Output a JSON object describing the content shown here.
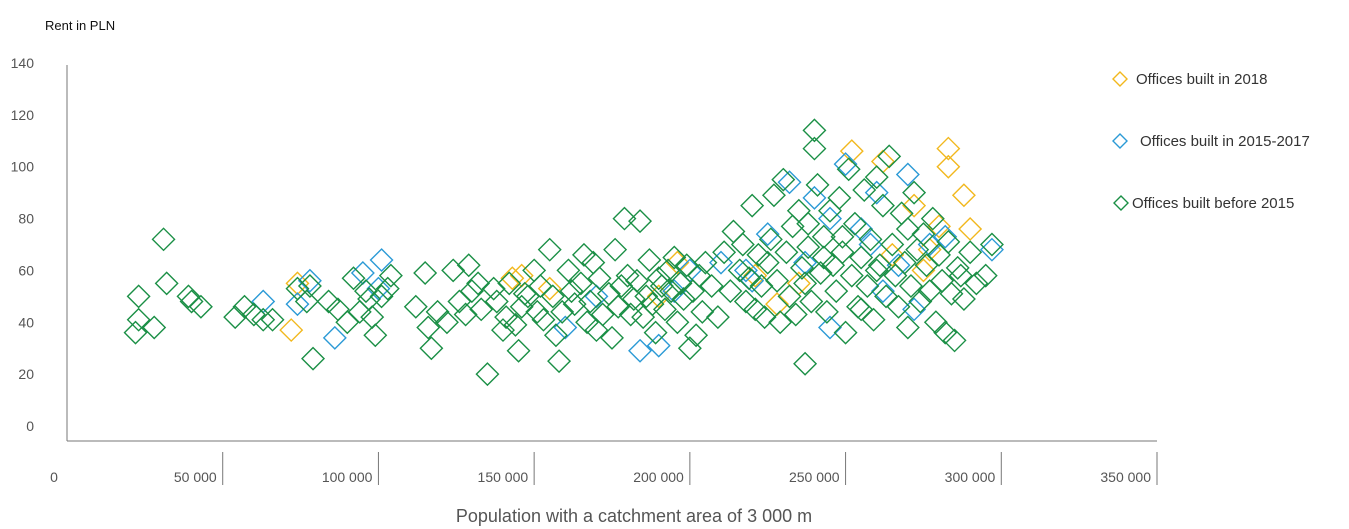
{
  "chart_data": {
    "type": "scatter",
    "ylabel": "Rent in PLN",
    "xlabel": "Population with a catchment area of 3 000 m",
    "xlim": [
      0,
      350000
    ],
    "ylim": [
      0,
      140
    ],
    "x_ticks": [
      0,
      50000,
      100000,
      150000,
      200000,
      250000,
      300000,
      350000
    ],
    "x_tick_labels": [
      "0",
      "50 000",
      "100 000",
      "150 000",
      "200 000",
      "250 000",
      "300 000",
      "350 000"
    ],
    "y_ticks": [
      0,
      20,
      40,
      60,
      80,
      100,
      120,
      140
    ],
    "y_tick_labels": [
      "0",
      "20",
      "40",
      "60",
      "80",
      "100",
      "120",
      "140"
    ],
    "legend_position": "right",
    "series": [
      {
        "name": "Offices built in 2018",
        "color": "#f2b81d",
        "points": [
          [
            72000,
            37
          ],
          [
            74000,
            55
          ],
          [
            143000,
            57
          ],
          [
            146000,
            58
          ],
          [
            155000,
            53
          ],
          [
            190000,
            50
          ],
          [
            196000,
            63
          ],
          [
            221000,
            58
          ],
          [
            228000,
            47
          ],
          [
            235000,
            55
          ],
          [
            252000,
            106
          ],
          [
            262000,
            102
          ],
          [
            265000,
            66
          ],
          [
            272000,
            85
          ],
          [
            275000,
            60
          ],
          [
            277000,
            68
          ],
          [
            280000,
            77
          ],
          [
            283000,
            107
          ],
          [
            283000,
            100
          ],
          [
            288000,
            89
          ],
          [
            290000,
            76
          ]
        ]
      },
      {
        "name": "Offices built in 2015-2017",
        "color": "#2b9ad6",
        "points": [
          [
            63000,
            48
          ],
          [
            74000,
            47
          ],
          [
            78000,
            56
          ],
          [
            86000,
            34
          ],
          [
            95000,
            59
          ],
          [
            100000,
            53
          ],
          [
            101000,
            64
          ],
          [
            160000,
            38
          ],
          [
            170000,
            50
          ],
          [
            184000,
            29
          ],
          [
            190000,
            31
          ],
          [
            195000,
            52
          ],
          [
            200000,
            60
          ],
          [
            210000,
            63
          ],
          [
            218000,
            60
          ],
          [
            220000,
            56
          ],
          [
            225000,
            74
          ],
          [
            232000,
            94
          ],
          [
            237000,
            63
          ],
          [
            240000,
            88
          ],
          [
            245000,
            80
          ],
          [
            245000,
            38
          ],
          [
            250000,
            101
          ],
          [
            255000,
            76
          ],
          [
            258000,
            70
          ],
          [
            260000,
            90
          ],
          [
            262000,
            52
          ],
          [
            267000,
            62
          ],
          [
            270000,
            97
          ],
          [
            272000,
            45
          ],
          [
            277000,
            70
          ],
          [
            282000,
            73
          ],
          [
            297000,
            68
          ]
        ]
      },
      {
        "name": "Offices built before 2015",
        "color": "#1a8f45",
        "points": [
          [
            22000,
            36
          ],
          [
            23000,
            41
          ],
          [
            23000,
            50
          ],
          [
            28000,
            38
          ],
          [
            31000,
            72
          ],
          [
            32000,
            55
          ],
          [
            39000,
            50
          ],
          [
            40000,
            48
          ],
          [
            43000,
            46
          ],
          [
            54000,
            42
          ],
          [
            57000,
            46
          ],
          [
            60000,
            43
          ],
          [
            63000,
            41
          ],
          [
            66000,
            41
          ],
          [
            74000,
            53
          ],
          [
            77000,
            48
          ],
          [
            78000,
            54
          ],
          [
            79000,
            26
          ],
          [
            84000,
            48
          ],
          [
            87000,
            45
          ],
          [
            90000,
            40
          ],
          [
            92000,
            57
          ],
          [
            94000,
            44
          ],
          [
            96000,
            52
          ],
          [
            97000,
            49
          ],
          [
            98000,
            42
          ],
          [
            99000,
            35
          ],
          [
            101000,
            50
          ],
          [
            103000,
            53
          ],
          [
            104000,
            58
          ],
          [
            112000,
            46
          ],
          [
            115000,
            59
          ],
          [
            116000,
            38
          ],
          [
            117000,
            30
          ],
          [
            119000,
            44
          ],
          [
            122000,
            40
          ],
          [
            124000,
            60
          ],
          [
            126000,
            48
          ],
          [
            128000,
            43
          ],
          [
            129000,
            62
          ],
          [
            130000,
            52
          ],
          [
            132000,
            55
          ],
          [
            133000,
            45
          ],
          [
            135000,
            20
          ],
          [
            137000,
            53
          ],
          [
            138000,
            48
          ],
          [
            140000,
            37
          ],
          [
            141000,
            42
          ],
          [
            142000,
            55
          ],
          [
            144000,
            39
          ],
          [
            145000,
            29
          ],
          [
            146000,
            46
          ],
          [
            147000,
            51
          ],
          [
            148000,
            50
          ],
          [
            150000,
            60
          ],
          [
            151000,
            44
          ],
          [
            152000,
            54
          ],
          [
            153000,
            41
          ],
          [
            155000,
            68
          ],
          [
            156000,
            50
          ],
          [
            157000,
            35
          ],
          [
            158000,
            25
          ],
          [
            159000,
            44
          ],
          [
            161000,
            60
          ],
          [
            162000,
            52
          ],
          [
            163000,
            47
          ],
          [
            165000,
            55
          ],
          [
            166000,
            66
          ],
          [
            167000,
            40
          ],
          [
            168000,
            48
          ],
          [
            169000,
            63
          ],
          [
            170000,
            37
          ],
          [
            171000,
            57
          ],
          [
            172000,
            43
          ],
          [
            174000,
            51
          ],
          [
            175000,
            34
          ],
          [
            176000,
            68
          ],
          [
            177000,
            46
          ],
          [
            178000,
            54
          ],
          [
            179000,
            80
          ],
          [
            180000,
            58
          ],
          [
            181000,
            43
          ],
          [
            182000,
            49
          ],
          [
            183000,
            56
          ],
          [
            184000,
            79
          ],
          [
            185000,
            42
          ],
          [
            186000,
            50
          ],
          [
            187000,
            64
          ],
          [
            188000,
            47
          ],
          [
            189000,
            36
          ],
          [
            190000,
            57
          ],
          [
            191000,
            54
          ],
          [
            192000,
            45
          ],
          [
            193000,
            60
          ],
          [
            194000,
            52
          ],
          [
            195000,
            65
          ],
          [
            196000,
            40
          ],
          [
            197000,
            55
          ],
          [
            198000,
            49
          ],
          [
            199000,
            62
          ],
          [
            200000,
            30
          ],
          [
            201000,
            52
          ],
          [
            202000,
            35
          ],
          [
            203000,
            58
          ],
          [
            204000,
            44
          ],
          [
            205000,
            63
          ],
          [
            207000,
            54
          ],
          [
            209000,
            42
          ],
          [
            211000,
            67
          ],
          [
            213000,
            52
          ],
          [
            214000,
            75
          ],
          [
            216000,
            60
          ],
          [
            217000,
            70
          ],
          [
            218000,
            48
          ],
          [
            219000,
            57
          ],
          [
            220000,
            85
          ],
          [
            221000,
            45
          ],
          [
            222000,
            66
          ],
          [
            223000,
            54
          ],
          [
            224000,
            42
          ],
          [
            225000,
            63
          ],
          [
            226000,
            72
          ],
          [
            227000,
            89
          ],
          [
            228000,
            56
          ],
          [
            229000,
            40
          ],
          [
            230000,
            95
          ],
          [
            231000,
            67
          ],
          [
            232000,
            50
          ],
          [
            233000,
            77
          ],
          [
            234000,
            43
          ],
          [
            235000,
            83
          ],
          [
            236000,
            61
          ],
          [
            237000,
            24
          ],
          [
            237000,
            55
          ],
          [
            238000,
            69
          ],
          [
            239000,
            48
          ],
          [
            240000,
            107
          ],
          [
            240000,
            114
          ],
          [
            241000,
            93
          ],
          [
            242000,
            59
          ],
          [
            243000,
            73
          ],
          [
            244000,
            44
          ],
          [
            245000,
            83
          ],
          [
            246000,
            62
          ],
          [
            247000,
            52
          ],
          [
            248000,
            88
          ],
          [
            249000,
            67
          ],
          [
            250000,
            36
          ],
          [
            251000,
            99
          ],
          [
            252000,
            58
          ],
          [
            253000,
            78
          ],
          [
            254000,
            46
          ],
          [
            255000,
            65
          ],
          [
            256000,
            91
          ],
          [
            257000,
            54
          ],
          [
            258000,
            72
          ],
          [
            259000,
            41
          ],
          [
            260000,
            96
          ],
          [
            261000,
            62
          ],
          [
            262000,
            85
          ],
          [
            263000,
            50
          ],
          [
            264000,
            104
          ],
          [
            265000,
            70
          ],
          [
            266000,
            58
          ],
          [
            267000,
            46
          ],
          [
            268000,
            82
          ],
          [
            269000,
            63
          ],
          [
            270000,
            76
          ],
          [
            271000,
            54
          ],
          [
            272000,
            90
          ],
          [
            273000,
            68
          ],
          [
            274000,
            48
          ],
          [
            275000,
            74
          ],
          [
            276000,
            62
          ],
          [
            277000,
            52
          ],
          [
            278000,
            80
          ],
          [
            279000,
            40
          ],
          [
            280000,
            66
          ],
          [
            281000,
            56
          ],
          [
            282000,
            36
          ],
          [
            283000,
            71
          ],
          [
            284000,
            51
          ],
          [
            285000,
            33
          ],
          [
            286000,
            61
          ],
          [
            287000,
            58
          ],
          [
            288000,
            49
          ],
          [
            290000,
            67
          ],
          [
            292000,
            55
          ],
          [
            295000,
            58
          ],
          [
            297000,
            70
          ],
          [
            270000,
            38
          ],
          [
            260000,
            60
          ],
          [
            255000,
            45
          ],
          [
            249000,
            73
          ],
          [
            243000,
            65
          ],
          [
            238000,
            78
          ]
        ]
      }
    ]
  }
}
